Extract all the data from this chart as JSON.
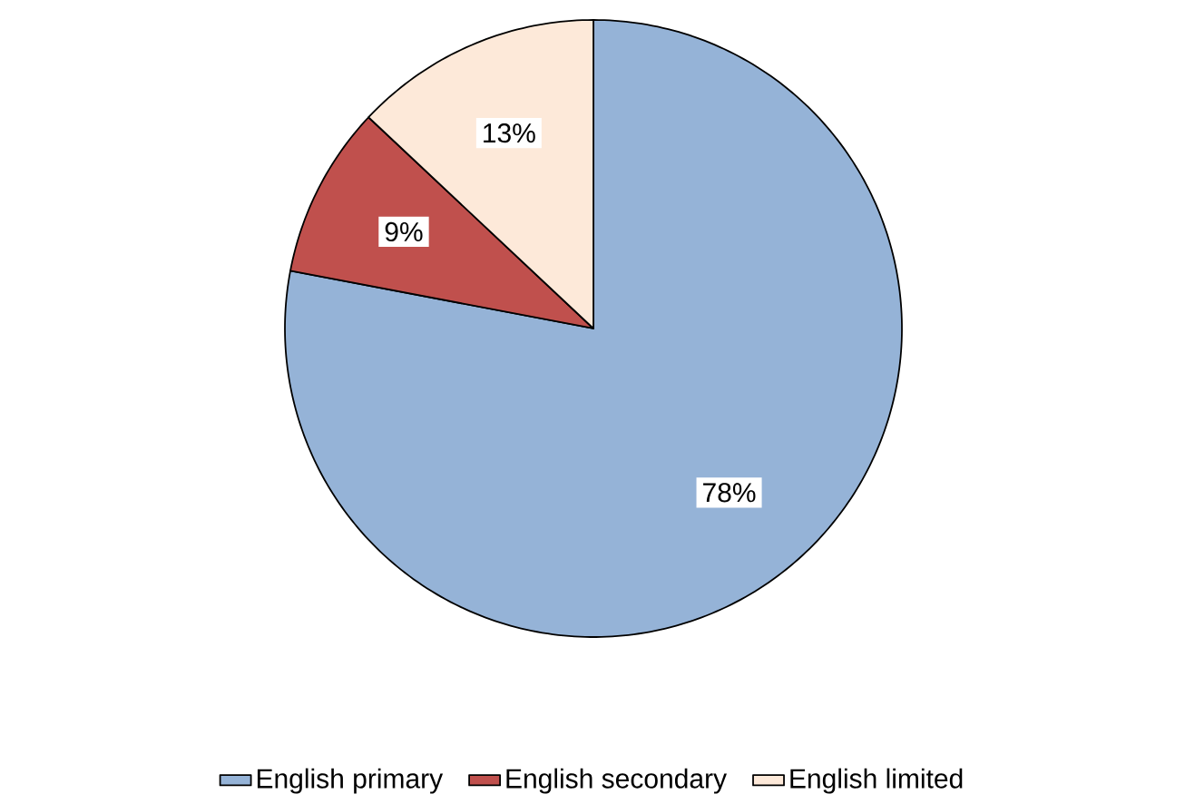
{
  "chart_data": {
    "type": "pie",
    "categories": [
      "English primary",
      "English secondary",
      "English limited"
    ],
    "values": [
      78,
      9,
      13
    ],
    "colors": [
      "#95b3d7",
      "#c0504d",
      "#fde9d9"
    ],
    "value_labels": [
      "78%",
      "9%",
      "13%"
    ],
    "legend": "bottom"
  }
}
